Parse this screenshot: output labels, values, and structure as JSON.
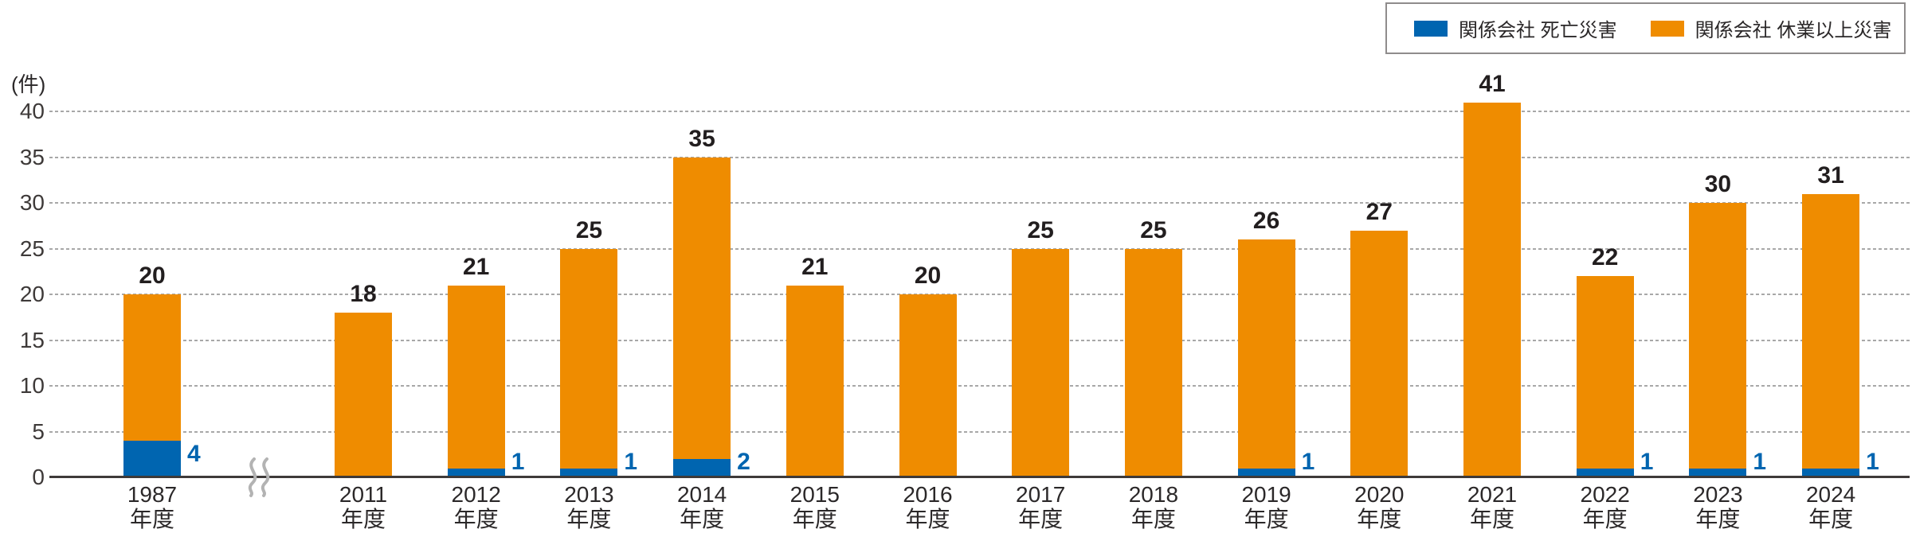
{
  "chart_data": {
    "type": "bar",
    "stacked": true,
    "unit_label": "(件)",
    "xlabel_suffix": "年度",
    "categories": [
      "1987",
      "2011",
      "2012",
      "2013",
      "2014",
      "2015",
      "2016",
      "2017",
      "2018",
      "2019",
      "2020",
      "2021",
      "2022",
      "2023",
      "2024"
    ],
    "axis_break_after": "1987",
    "series": [
      {
        "name": "関係会社 死亡災害",
        "color": "#0065b0",
        "values": [
          4,
          0,
          1,
          1,
          2,
          0,
          0,
          0,
          0,
          1,
          0,
          0,
          1,
          1,
          1
        ]
      },
      {
        "name": "関係会社 休業以上災害",
        "color": "#ef8c00",
        "values": [
          16,
          18,
          20,
          24,
          33,
          21,
          20,
          25,
          25,
          25,
          27,
          41,
          21,
          29,
          30
        ]
      }
    ],
    "totals": [
      20,
      18,
      21,
      25,
      35,
      21,
      20,
      25,
      25,
      26,
      27,
      41,
      22,
      30,
      31
    ],
    "ylim": [
      0,
      40
    ],
    "yticks": [
      0,
      5,
      10,
      15,
      20,
      25,
      30,
      35,
      40
    ],
    "grid": "dotted-horizontal",
    "legend_position": "top-right",
    "colors": {
      "fatal_blue": "#0065b0",
      "injury_orange": "#ef8c00",
      "axis": "#3e3a39",
      "gridline": "#a8a8a8",
      "break_mark": "#b3b3b3"
    }
  }
}
